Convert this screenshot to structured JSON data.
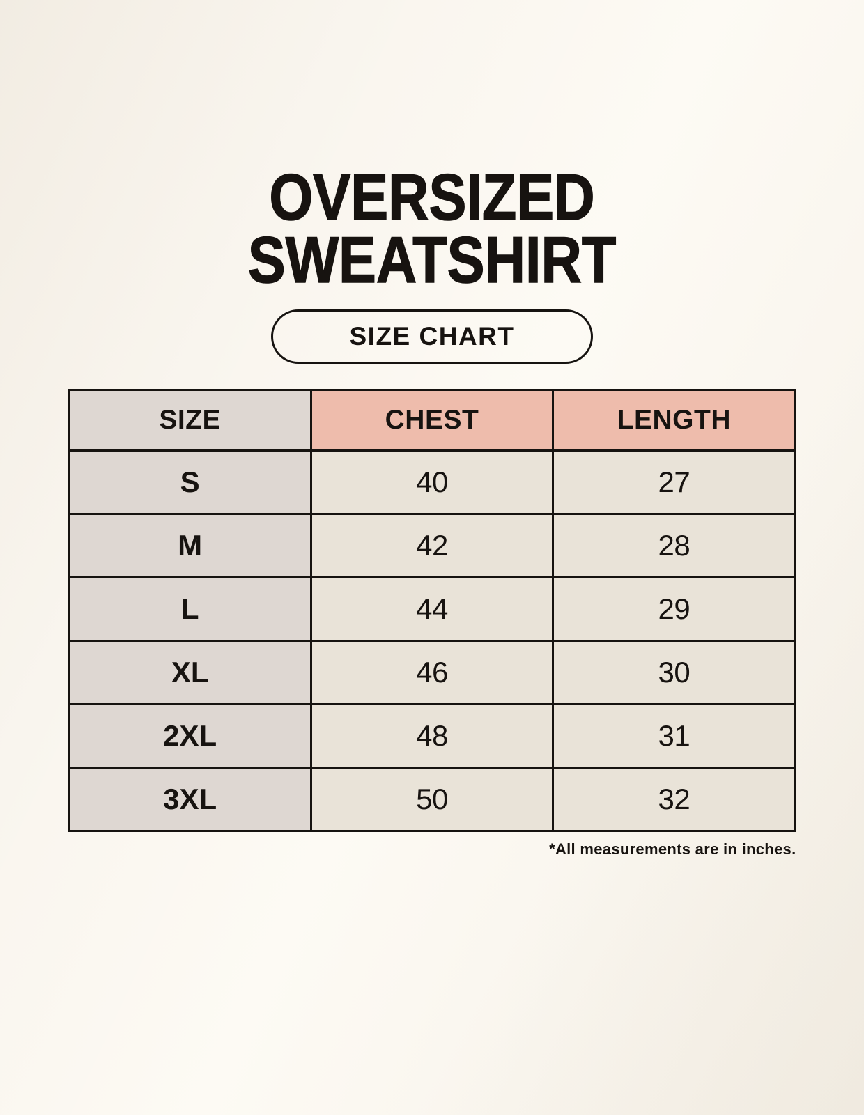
{
  "header": {
    "title_line1": "OVERSIZED",
    "title_line2": "SWEATSHIRT",
    "size_chart_button_label": "SIZE CHART"
  },
  "chart_data": {
    "type": "table",
    "title": "OVERSIZED SWEATSHIRT",
    "subtitle": "SIZE CHART",
    "units": "inches",
    "columns": [
      "SIZE",
      "CHEST",
      "LENGTH"
    ],
    "rows": [
      {
        "size": "S",
        "chest": 40,
        "length": 27
      },
      {
        "size": "M",
        "chest": 42,
        "length": 28
      },
      {
        "size": "L",
        "chest": 44,
        "length": 29
      },
      {
        "size": "XL",
        "chest": 46,
        "length": 30
      },
      {
        "size": "2XL",
        "chest": 48,
        "length": 31
      },
      {
        "size": "3XL",
        "chest": 50,
        "length": 32
      }
    ],
    "note": "*All measurements are in inches."
  },
  "colors": {
    "background": "#f9f5ee",
    "cell_gray": "#ded7d2",
    "cell_salmon": "#eebcac",
    "cell_cream": "#e9e3d8",
    "table_border": "#161310",
    "text": "#171310"
  }
}
